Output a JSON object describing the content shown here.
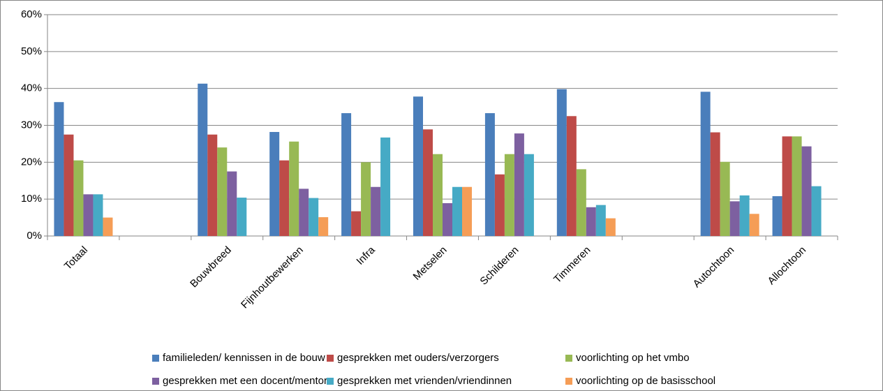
{
  "chart_data": {
    "type": "bar",
    "categories": [
      "Totaal",
      null,
      "Bouwbreed",
      "Fijnhoutbewerken",
      "Infra",
      "Metselen",
      "Schilderen",
      "Timmeren",
      null,
      "Autochtoon",
      "Allochtoon"
    ],
    "series": [
      {
        "name": "familieleden/ kennissen in de bouw",
        "color": "#4a7ebb",
        "values": [
          36.3,
          null,
          41.3,
          28.2,
          33.3,
          37.8,
          33.3,
          39.8,
          null,
          39.1,
          10.8
        ]
      },
      {
        "name": "gesprekken met ouders/verzorgers",
        "color": "#be4b48",
        "values": [
          27.5,
          null,
          27.5,
          20.5,
          6.7,
          28.9,
          16.7,
          32.5,
          null,
          28.1,
          27.0
        ]
      },
      {
        "name": "voorlichting op het vmbo",
        "color": "#98b954",
        "values": [
          20.5,
          null,
          24.0,
          25.6,
          20.0,
          22.2,
          22.2,
          18.1,
          null,
          20.1,
          27.0
        ]
      },
      {
        "name": "gesprekken met een docent/mentor",
        "color": "#7d60a0",
        "values": [
          11.3,
          null,
          17.5,
          12.8,
          13.3,
          8.9,
          27.8,
          7.8,
          null,
          9.4,
          24.3
        ]
      },
      {
        "name": "gesprekken met vrienden/vriendinnen",
        "color": "#46aac5",
        "values": [
          11.3,
          null,
          10.4,
          10.3,
          26.7,
          13.3,
          22.2,
          8.4,
          null,
          11.0,
          13.5
        ]
      },
      {
        "name": "voorlichting op de basisschool",
        "color": "#f59d56",
        "values": [
          5.0,
          null,
          null,
          5.1,
          null,
          13.3,
          null,
          4.8,
          null,
          6.0,
          null
        ]
      }
    ],
    "ylim": [
      0,
      60
    ],
    "yticks": [
      {
        "value": 0,
        "label": "0%"
      },
      {
        "value": 10,
        "label": "10%"
      },
      {
        "value": 20,
        "label": "20%"
      },
      {
        "value": 30,
        "label": "30%"
      },
      {
        "value": 40,
        "label": "40%"
      },
      {
        "value": 50,
        "label": "50%"
      },
      {
        "value": 60,
        "label": "60%"
      }
    ],
    "grid": true,
    "legend": "bottom"
  }
}
